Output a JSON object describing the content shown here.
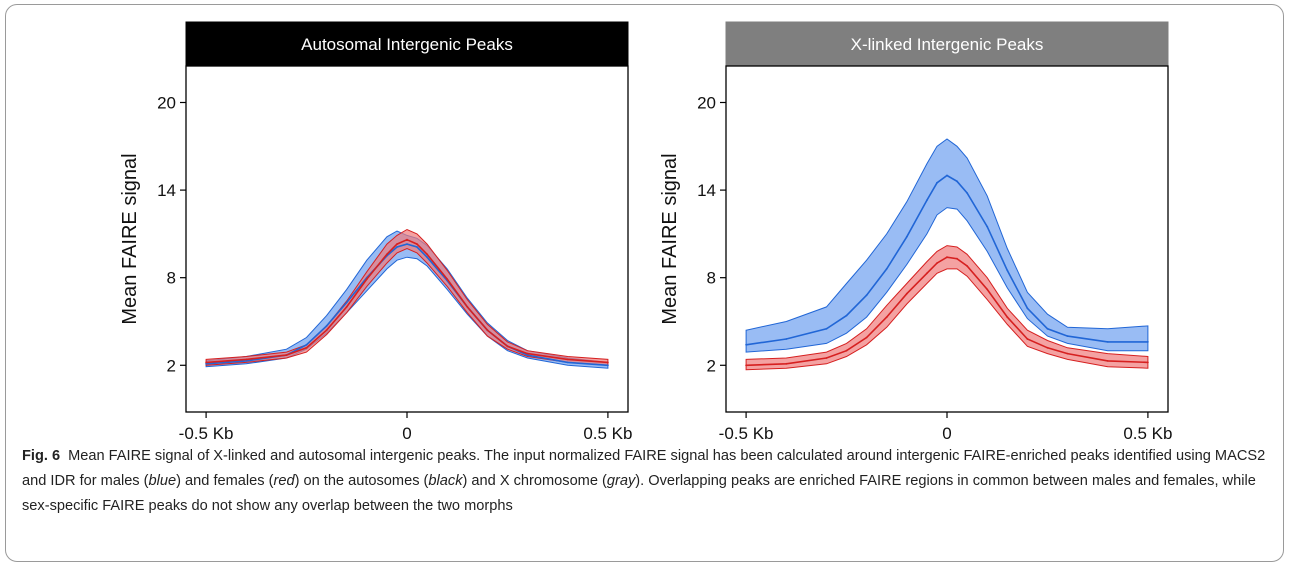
{
  "chart_data": [
    {
      "type": "line",
      "title": "Autosomal Intergenic Peaks",
      "title_bar_color": "#000000",
      "xlabel": "",
      "ylabel": "Mean FAIRE signal",
      "x_tick_labels": [
        "-0.5 Kb",
        "0",
        "0.5 Kb"
      ],
      "x_ticks": [
        -0.5,
        0,
        0.5
      ],
      "y_ticks": [
        2,
        8,
        14,
        20
      ],
      "xlim": [
        -0.55,
        0.55
      ],
      "ylim": [
        -1.2,
        22.5
      ],
      "x": [
        -0.5,
        -0.4,
        -0.3,
        -0.25,
        -0.2,
        -0.15,
        -0.1,
        -0.05,
        -0.025,
        0,
        0.025,
        0.05,
        0.1,
        0.15,
        0.2,
        0.25,
        0.3,
        0.4,
        0.5
      ],
      "series": [
        {
          "color": "#2166d6",
          "fill": "#6e9ff0",
          "mean": [
            2.1,
            2.3,
            2.7,
            3.4,
            4.7,
            6.3,
            8.0,
            9.5,
            10.1,
            10.3,
            10.1,
            9.4,
            7.8,
            6.0,
            4.4,
            3.3,
            2.7,
            2.2,
            2.0
          ],
          "upper": [
            2.3,
            2.6,
            3.1,
            3.9,
            5.4,
            7.2,
            9.2,
            10.8,
            11.2,
            10.9,
            10.7,
            10.2,
            8.6,
            6.6,
            4.9,
            3.7,
            3.0,
            2.5,
            2.2
          ],
          "lower": [
            1.9,
            2.1,
            2.5,
            3.1,
            4.2,
            5.6,
            7.1,
            8.6,
            9.2,
            9.4,
            9.3,
            8.8,
            7.2,
            5.5,
            4.0,
            3.0,
            2.5,
            2.0,
            1.8
          ]
        },
        {
          "color": "#d62020",
          "fill": "#f07a7a",
          "mean": [
            2.2,
            2.4,
            2.7,
            3.2,
            4.4,
            6.0,
            7.9,
            9.6,
            10.3,
            10.6,
            10.3,
            9.6,
            7.9,
            6.0,
            4.4,
            3.3,
            2.8,
            2.4,
            2.2
          ],
          "upper": [
            2.4,
            2.6,
            2.9,
            3.4,
            4.7,
            6.4,
            8.4,
            10.3,
            10.9,
            11.3,
            11.0,
            10.3,
            8.5,
            6.5,
            4.8,
            3.6,
            3.0,
            2.6,
            2.4
          ],
          "lower": [
            2.0,
            2.2,
            2.5,
            2.9,
            4.1,
            5.6,
            7.4,
            9.0,
            9.7,
            10.0,
            9.7,
            9.0,
            7.4,
            5.6,
            4.0,
            3.1,
            2.6,
            2.2,
            2.0
          ]
        }
      ]
    },
    {
      "type": "line",
      "title": "X-linked Intergenic Peaks",
      "title_bar_color": "#7f7f7f",
      "xlabel": "",
      "ylabel": "Mean FAIRE signal",
      "x_tick_labels": [
        "-0.5 Kb",
        "0",
        "0.5 Kb"
      ],
      "x_ticks": [
        -0.5,
        0,
        0.5
      ],
      "y_ticks": [
        2,
        8,
        14,
        20
      ],
      "xlim": [
        -0.55,
        0.55
      ],
      "ylim": [
        -1.2,
        22.5
      ],
      "x": [
        -0.5,
        -0.4,
        -0.3,
        -0.25,
        -0.2,
        -0.15,
        -0.1,
        -0.05,
        -0.025,
        0,
        0.025,
        0.05,
        0.1,
        0.15,
        0.2,
        0.25,
        0.3,
        0.4,
        0.5
      ],
      "series": [
        {
          "color": "#2166d6",
          "fill": "#6e9ff0",
          "mean": [
            3.4,
            3.8,
            4.5,
            5.4,
            6.8,
            8.6,
            10.8,
            13.3,
            14.5,
            15.0,
            14.6,
            13.8,
            11.5,
            8.5,
            5.9,
            4.5,
            4.0,
            3.6,
            3.6
          ],
          "upper": [
            4.4,
            5.0,
            6.0,
            7.6,
            9.2,
            11.0,
            13.2,
            15.8,
            17.0,
            17.5,
            17.0,
            16.2,
            13.6,
            10.0,
            7.0,
            5.5,
            4.6,
            4.5,
            4.7
          ],
          "lower": [
            2.9,
            3.1,
            3.5,
            4.2,
            5.3,
            7.0,
            8.9,
            11.0,
            12.3,
            12.8,
            12.7,
            11.9,
            9.8,
            7.3,
            5.2,
            4.0,
            3.5,
            3.0,
            3.0
          ]
        },
        {
          "color": "#d62020",
          "fill": "#f07a7a",
          "mean": [
            2.0,
            2.1,
            2.5,
            3.0,
            3.9,
            5.3,
            6.9,
            8.3,
            9.0,
            9.4,
            9.3,
            8.8,
            7.2,
            5.3,
            3.8,
            3.2,
            2.8,
            2.3,
            2.2
          ],
          "upper": [
            2.4,
            2.5,
            2.9,
            3.5,
            4.5,
            6.1,
            7.6,
            9.1,
            9.8,
            10.2,
            10.1,
            9.6,
            8.0,
            5.9,
            4.4,
            3.7,
            3.2,
            2.8,
            2.6
          ],
          "lower": [
            1.7,
            1.8,
            2.1,
            2.6,
            3.4,
            4.6,
            6.2,
            7.6,
            8.3,
            8.6,
            8.6,
            8.1,
            6.5,
            4.8,
            3.3,
            2.8,
            2.4,
            1.9,
            1.8
          ]
        }
      ]
    }
  ],
  "caption": {
    "label": "Fig. 6",
    "segments": [
      {
        "t": "Mean FAIRE signal of X-linked and autosomal intergenic peaks. The input normalized FAIRE signal has been calculated around intergenic FAIRE-enriched peaks identified using MACS2 and IDR for males (",
        "i": false
      },
      {
        "t": "blue",
        "i": true
      },
      {
        "t": ") and females (",
        "i": false
      },
      {
        "t": "red",
        "i": true
      },
      {
        "t": ") on the autosomes (",
        "i": false
      },
      {
        "t": "black",
        "i": true
      },
      {
        "t": ") and X chromosome (",
        "i": false
      },
      {
        "t": "gray",
        "i": true
      },
      {
        "t": "). Overlapping peaks are enriched FAIRE regions in common between males and females, while sex-specific FAIRE peaks do not show any overlap between the two morphs",
        "i": false
      }
    ]
  }
}
